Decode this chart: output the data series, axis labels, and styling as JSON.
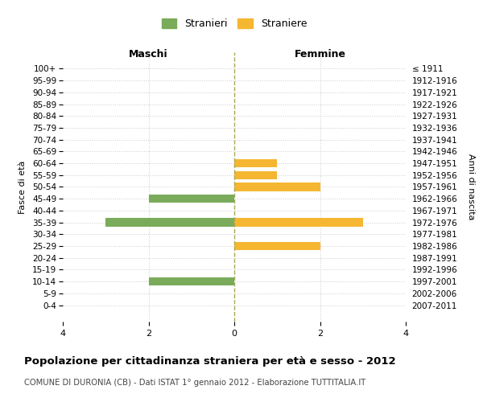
{
  "age_groups": [
    "100+",
    "95-99",
    "90-94",
    "85-89",
    "80-84",
    "75-79",
    "70-74",
    "65-69",
    "60-64",
    "55-59",
    "50-54",
    "45-49",
    "40-44",
    "35-39",
    "30-34",
    "25-29",
    "20-24",
    "15-19",
    "10-14",
    "5-9",
    "0-4"
  ],
  "birth_years": [
    "≤ 1911",
    "1912-1916",
    "1917-1921",
    "1922-1926",
    "1927-1931",
    "1932-1936",
    "1937-1941",
    "1942-1946",
    "1947-1951",
    "1952-1956",
    "1957-1961",
    "1962-1966",
    "1967-1971",
    "1972-1976",
    "1977-1981",
    "1982-1986",
    "1987-1991",
    "1992-1996",
    "1997-2001",
    "2002-2006",
    "2007-2011"
  ],
  "maschi": [
    0,
    0,
    0,
    0,
    0,
    0,
    0,
    0,
    0,
    0,
    0,
    2,
    0,
    3,
    0,
    0,
    0,
    0,
    2,
    0,
    0
  ],
  "femmine": [
    0,
    0,
    0,
    0,
    0,
    0,
    0,
    0,
    1,
    1,
    2,
    0,
    0,
    3,
    0,
    2,
    0,
    0,
    0,
    0,
    0
  ],
  "color_maschi": "#7aab5a",
  "color_femmine": "#f5b731",
  "title": "Popolazione per cittadinanza straniera per età e sesso - 2012",
  "subtitle": "COMUNE DI DURONIA (CB) - Dati ISTAT 1° gennaio 2012 - Elaborazione TUTTITALIA.IT",
  "xlabel_left": "Maschi",
  "xlabel_right": "Femmine",
  "ylabel_left": "Fasce di età",
  "ylabel_right": "Anni di nascita",
  "legend_stranieri": "Stranieri",
  "legend_straniere": "Straniere",
  "xlim": 4,
  "background_color": "#ffffff",
  "grid_color": "#cccccc",
  "bar_height": 0.7
}
